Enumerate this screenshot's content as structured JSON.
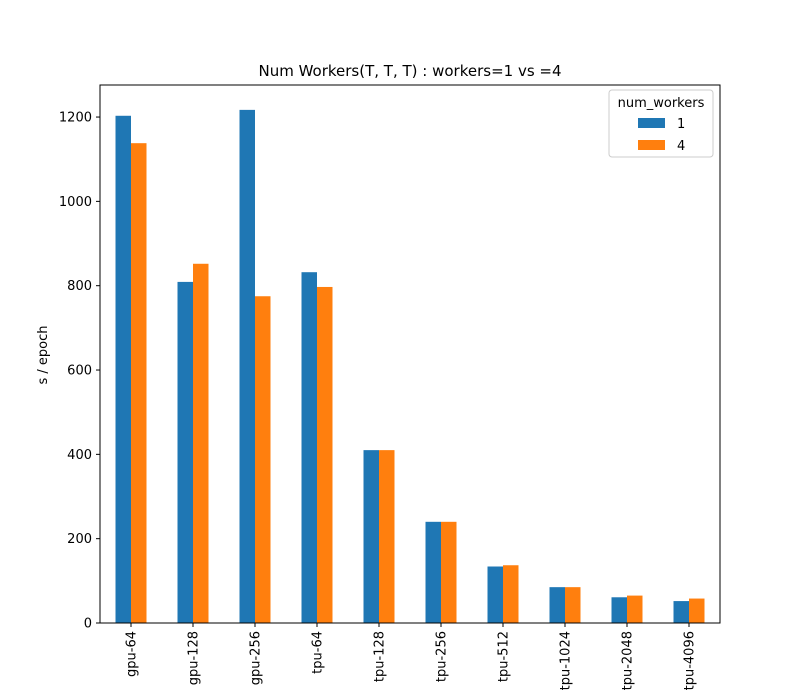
{
  "chart_data": {
    "type": "bar",
    "title": "Num Workers(T, T, T) : workers=1 vs =4",
    "xlabel": "",
    "ylabel": "s / epoch",
    "ylim": [
      0,
      1276
    ],
    "yticks": [
      0,
      200,
      400,
      600,
      800,
      1000,
      1200
    ],
    "categories": [
      "gpu-64",
      "gpu-128",
      "gpu-256",
      "tpu-64",
      "tpu-128",
      "tpu-256",
      "tpu-512",
      "tpu-1024",
      "tpu-2048",
      "tpu-4096"
    ],
    "series": [
      {
        "name": "1",
        "color": "#1f77b4",
        "values": [
          1203,
          809,
          1217,
          832,
          410,
          240,
          134,
          85,
          61,
          52
        ]
      },
      {
        "name": "4",
        "color": "#ff7f0e",
        "values": [
          1138,
          852,
          775,
          797,
          410,
          240,
          137,
          85,
          65,
          58
        ]
      }
    ],
    "legend": {
      "title": "num_workers",
      "placement": "top-right"
    },
    "grid": false
  }
}
